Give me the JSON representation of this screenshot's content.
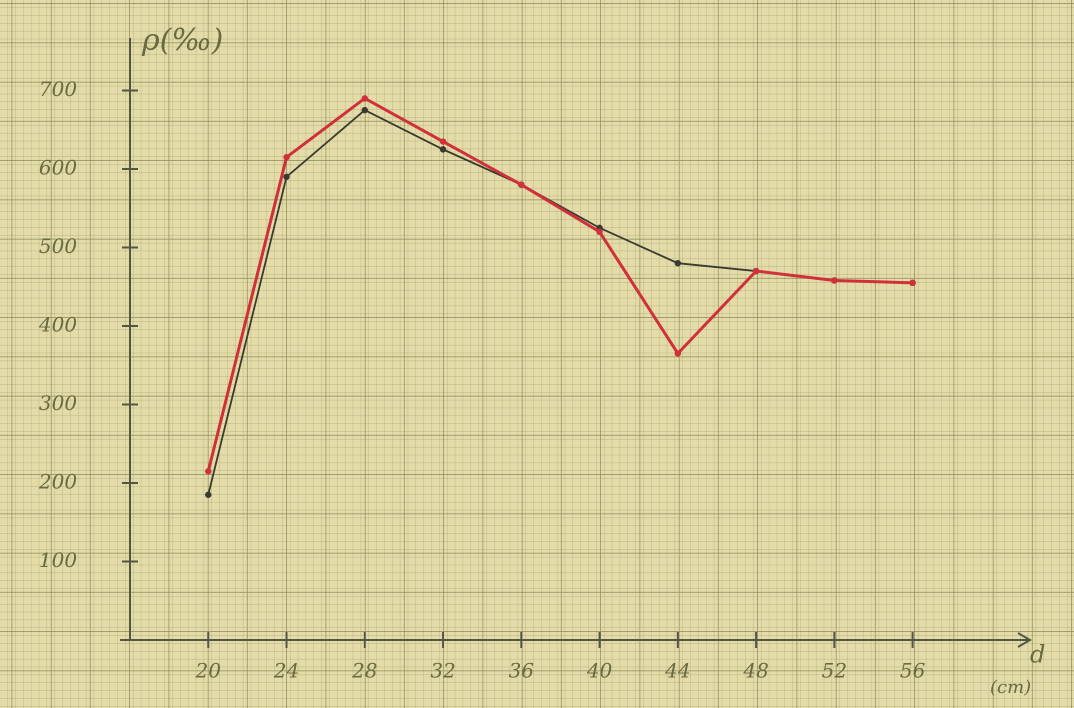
{
  "chart_data": {
    "type": "line",
    "y_label": "ρ(‰)",
    "x_label": "d",
    "x_unit": "(cm)",
    "x": [
      20,
      24,
      28,
      32,
      36,
      40,
      44,
      48,
      52,
      56
    ],
    "series": [
      {
        "color": "#3a3a30",
        "values": [
          185,
          590,
          675,
          625,
          580,
          525,
          480,
          470,
          458,
          455
        ]
      },
      {
        "color": "#d0303a",
        "values": [
          215,
          615,
          690,
          635,
          580,
          520,
          365,
          470,
          458,
          455
        ]
      }
    ],
    "xlim": [
      16,
      62
    ],
    "xticks": [
      20,
      24,
      28,
      32,
      36,
      40,
      44,
      48,
      52,
      56
    ],
    "ylim": [
      0,
      760
    ],
    "yticks": [
      100,
      200,
      300,
      400,
      500,
      600,
      700
    ]
  }
}
